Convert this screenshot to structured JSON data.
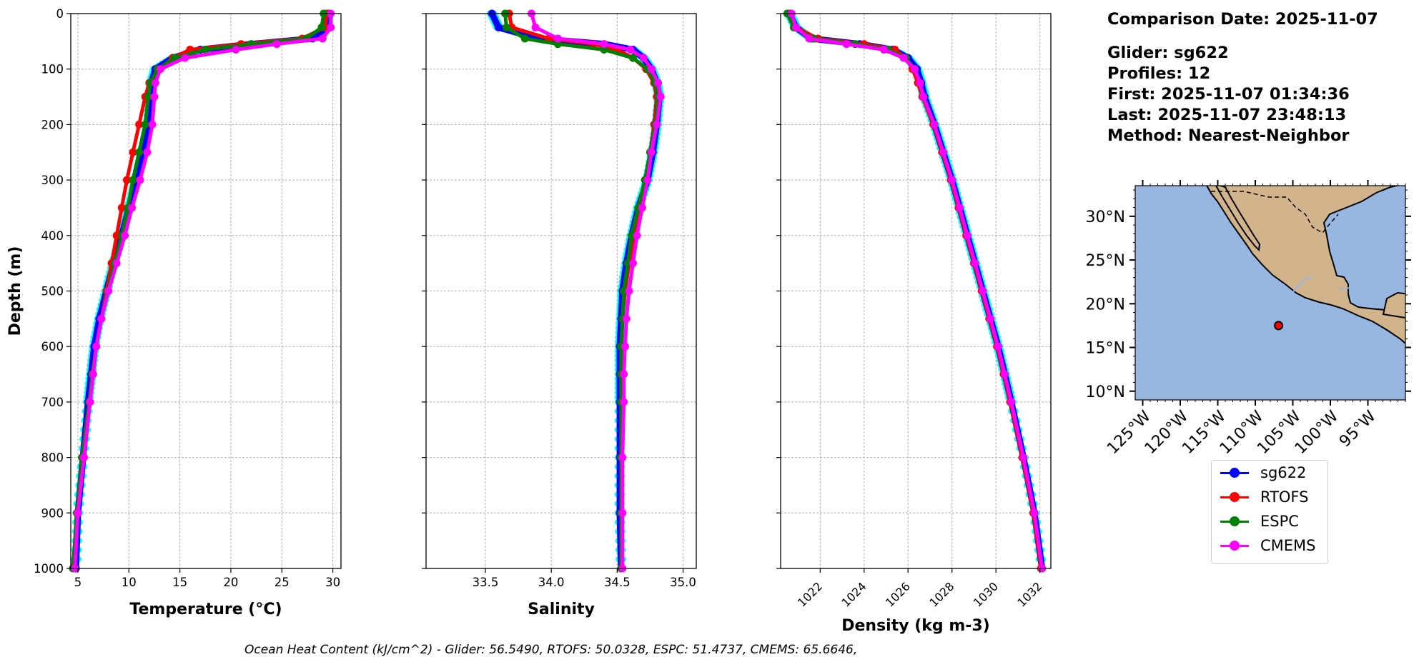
{
  "info": {
    "comparison_date": "Comparison Date: 2025-11-07",
    "glider": "Glider: sg622",
    "profiles": "Profiles: 12",
    "first": "First: 2025-11-07 01:34:36",
    "last": "Last: 2025-11-07 23:48:13",
    "method": "Method: Nearest-Neighbor"
  },
  "footer": "Ocean Heat Content (kJ/cm^2) - Glider: 56.5490,  RTOFS: 50.0328,  ESPC: 51.4737,  CMEMS: 65.6646,",
  "legend": [
    {
      "label": "sg622",
      "color": "#0000ff"
    },
    {
      "label": "RTOFS",
      "color": "#ff0000"
    },
    {
      "label": "ESPC",
      "color": "#008000"
    },
    {
      "label": "CMEMS",
      "color": "#ff00ff"
    }
  ],
  "colors": {
    "glider_raw": "#00ffff",
    "ocean": "#97b6e1",
    "land": "#d2b48c"
  },
  "chart_data": [
    {
      "type": "line",
      "title": "",
      "xlabel": "Temperature (°C)",
      "ylabel": "Depth (m)",
      "xlim": [
        4.3,
        30.8
      ],
      "ylim": [
        1000,
        0
      ],
      "xticks": [
        5,
        10,
        15,
        20,
        25,
        30
      ],
      "yticks": [
        0,
        100,
        200,
        300,
        400,
        500,
        600,
        700,
        800,
        900,
        1000
      ],
      "grid": true,
      "depth": [
        0,
        25,
        45,
        55,
        65,
        80,
        100,
        125,
        150,
        200,
        250,
        300,
        350,
        400,
        450,
        500,
        550,
        600,
        650,
        700,
        800,
        900,
        1000
      ],
      "series": [
        {
          "name": "sg622",
          "values": [
            29.6,
            29.4,
            28.0,
            22.0,
            17.0,
            14.3,
            12.6,
            12.2,
            12.1,
            11.9,
            11.3,
            10.7,
            10.0,
            9.3,
            8.5,
            7.8,
            7.1,
            6.6,
            6.3,
            6.0,
            5.5,
            5.0,
            4.8
          ]
        },
        {
          "name": "RTOFS",
          "values": [
            29.4,
            29.2,
            27.0,
            21.0,
            16.0,
            14.3,
            13.0,
            12.0,
            11.6,
            11.0,
            10.4,
            9.8,
            9.3,
            8.8,
            8.3,
            7.8,
            7.3,
            6.8,
            6.4,
            6.1,
            5.4,
            4.9,
            4.6
          ]
        },
        {
          "name": "ESPC",
          "values": [
            29.1,
            28.9,
            27.4,
            22.0,
            17.5,
            14.5,
            12.8,
            12.1,
            11.9,
            11.6,
            11.0,
            10.4,
            9.9,
            9.3,
            8.6,
            7.9,
            7.3,
            6.8,
            6.4,
            6.1,
            5.4,
            4.9,
            4.5
          ]
        },
        {
          "name": "CMEMS",
          "values": [
            29.8,
            29.8,
            29.0,
            24.5,
            20.5,
            15.5,
            13.1,
            12.6,
            12.5,
            12.3,
            11.8,
            11.1,
            10.3,
            9.6,
            8.8,
            8.0,
            7.3,
            6.8,
            6.5,
            6.2,
            5.6,
            5.0,
            4.7
          ]
        }
      ]
    },
    {
      "type": "line",
      "title": "",
      "xlabel": "Salinity",
      "ylabel": "",
      "xlim": [
        33.05,
        35.1
      ],
      "ylim": [
        1000,
        0
      ],
      "xticks": [
        33.5,
        34.0,
        34.5,
        35.0
      ],
      "grid": true,
      "depth": [
        0,
        25,
        45,
        55,
        65,
        80,
        100,
        125,
        150,
        200,
        250,
        300,
        350,
        400,
        450,
        500,
        550,
        600,
        650,
        700,
        800,
        900,
        1000
      ],
      "series": [
        {
          "name": "sg622",
          "values": [
            33.55,
            33.6,
            33.9,
            34.4,
            34.62,
            34.7,
            34.76,
            34.8,
            34.82,
            34.8,
            34.77,
            34.73,
            34.66,
            34.61,
            34.57,
            34.54,
            34.53,
            34.52,
            34.52,
            34.52,
            34.52,
            34.52,
            34.53
          ]
        },
        {
          "name": "RTOFS",
          "values": [
            33.68,
            33.7,
            33.98,
            34.32,
            34.5,
            34.62,
            34.72,
            34.78,
            34.8,
            34.78,
            34.75,
            34.72,
            34.68,
            34.63,
            34.59,
            34.56,
            34.54,
            34.53,
            34.53,
            34.53,
            34.53,
            34.53,
            34.53
          ]
        },
        {
          "name": "ESPC",
          "values": [
            33.65,
            33.66,
            33.8,
            34.05,
            34.4,
            34.62,
            34.73,
            34.79,
            34.81,
            34.79,
            34.75,
            34.71,
            34.66,
            34.61,
            34.58,
            34.55,
            34.54,
            34.53,
            34.53,
            34.53,
            34.53,
            34.53,
            34.53
          ]
        },
        {
          "name": "CMEMS",
          "values": [
            33.85,
            33.88,
            34.05,
            34.4,
            34.6,
            34.7,
            34.76,
            34.81,
            34.83,
            34.8,
            34.76,
            34.73,
            34.69,
            34.65,
            34.62,
            34.59,
            34.57,
            34.56,
            34.55,
            34.55,
            34.54,
            34.54,
            34.54
          ]
        }
      ]
    },
    {
      "type": "line",
      "title": "",
      "xlabel": "Density (kg m-3)",
      "ylabel": "",
      "xlim": [
        1020.2,
        1032.5
      ],
      "ylim": [
        1000,
        0
      ],
      "xticks": [
        1022,
        1024,
        1026,
        1028,
        1030,
        1032
      ],
      "grid": true,
      "depth": [
        0,
        25,
        45,
        55,
        65,
        80,
        100,
        125,
        150,
        200,
        250,
        300,
        350,
        400,
        450,
        500,
        550,
        600,
        650,
        700,
        800,
        900,
        1000
      ],
      "series": [
        {
          "name": "sg622",
          "values": [
            1020.6,
            1020.9,
            1021.6,
            1023.8,
            1025.3,
            1026.0,
            1026.4,
            1026.6,
            1026.75,
            1027.2,
            1027.6,
            1028.0,
            1028.35,
            1028.7,
            1029.05,
            1029.4,
            1029.75,
            1030.1,
            1030.4,
            1030.7,
            1031.25,
            1031.75,
            1032.1
          ]
        },
        {
          "name": "RTOFS",
          "values": [
            1020.6,
            1020.9,
            1021.9,
            1024.0,
            1025.4,
            1025.9,
            1026.2,
            1026.45,
            1026.65,
            1027.15,
            1027.55,
            1027.95,
            1028.3,
            1028.65,
            1029.0,
            1029.35,
            1029.7,
            1030.05,
            1030.35,
            1030.65,
            1031.2,
            1031.7,
            1032.05
          ]
        },
        {
          "name": "ESPC",
          "values": [
            1020.5,
            1020.8,
            1021.7,
            1023.6,
            1025.1,
            1025.9,
            1026.3,
            1026.55,
            1026.7,
            1027.2,
            1027.6,
            1028.0,
            1028.35,
            1028.7,
            1029.05,
            1029.4,
            1029.75,
            1030.1,
            1030.4,
            1030.7,
            1031.25,
            1031.75,
            1032.1
          ]
        },
        {
          "name": "CMEMS",
          "values": [
            1020.7,
            1020.9,
            1021.5,
            1023.2,
            1024.9,
            1025.8,
            1026.3,
            1026.55,
            1026.7,
            1027.2,
            1027.6,
            1028.0,
            1028.35,
            1028.7,
            1029.05,
            1029.4,
            1029.75,
            1030.1,
            1030.4,
            1030.7,
            1031.25,
            1031.75,
            1032.1
          ]
        }
      ]
    },
    {
      "type": "map",
      "title": "",
      "lon_range": [
        -126,
        -90
      ],
      "lat_range": [
        9,
        33.5
      ],
      "lon_ticks": [
        -125,
        -120,
        -115,
        -110,
        -105,
        -100,
        -95
      ],
      "lon_tick_labels": [
        "125°W",
        "120°W",
        "115°W",
        "110°W",
        "105°W",
        "100°W",
        "95°W"
      ],
      "lat_ticks": [
        30,
        25,
        20,
        15,
        10
      ],
      "lat_tick_labels": [
        "30°N",
        "25°N",
        "20°N",
        "15°N",
        "10°N"
      ],
      "glider_position": {
        "lon": -106.9,
        "lat": 17.5
      }
    }
  ]
}
